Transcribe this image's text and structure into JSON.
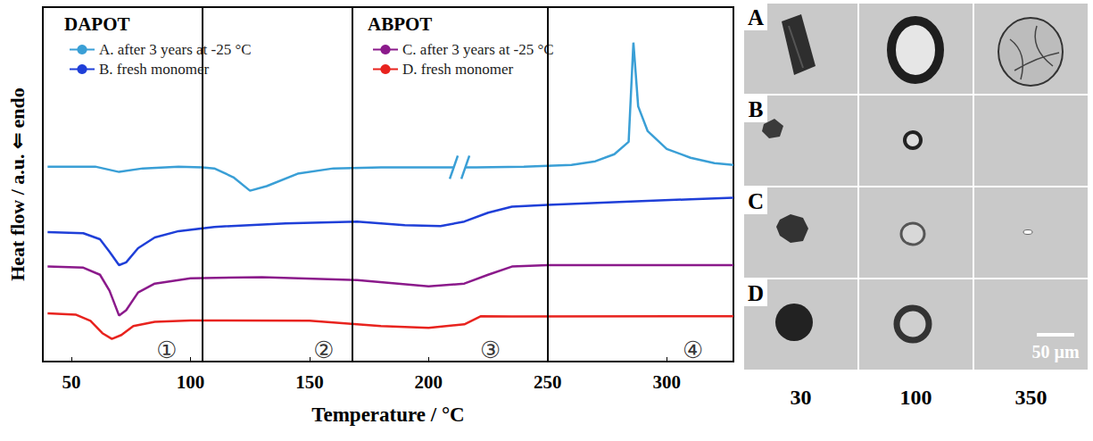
{
  "chart_data": {
    "type": "line",
    "x_label": "Temperature / °C",
    "y_label": "Heat flow / a.u. ⇐ endo",
    "xlim": [
      38,
      328
    ],
    "xticks": [
      50,
      100,
      150,
      200,
      250,
      300
    ],
    "ylim": [
      0,
      10
    ],
    "tick_labels": "x",
    "grid": false,
    "legend": "top",
    "series": [
      {
        "name": "A. after 3 years at -25 °C",
        "group": "DAPOT",
        "color": "#3a9fd6",
        "x": [
          40,
          60,
          70,
          80,
          95,
          105,
          110,
          118,
          125,
          132,
          145,
          160,
          180,
          200,
          220,
          240,
          260,
          270,
          278,
          284,
          286,
          288,
          292,
          300,
          310,
          320,
          328
        ],
        "values": [
          5.5,
          5.5,
          5.35,
          5.45,
          5.5,
          5.48,
          5.45,
          5.2,
          4.82,
          4.95,
          5.3,
          5.45,
          5.48,
          5.48,
          5.48,
          5.5,
          5.55,
          5.65,
          5.85,
          6.2,
          9.0,
          7.2,
          6.5,
          6.0,
          5.75,
          5.6,
          5.55
        ]
      },
      {
        "name": "B. fresh monomer",
        "group": "DAPOT",
        "color": "#1f3fd8",
        "x": [
          40,
          55,
          62,
          66,
          70,
          73,
          78,
          85,
          95,
          110,
          140,
          170,
          190,
          205,
          215,
          225,
          235,
          250,
          280,
          310,
          328
        ],
        "values": [
          3.65,
          3.62,
          3.45,
          3.1,
          2.72,
          2.8,
          3.2,
          3.5,
          3.68,
          3.8,
          3.9,
          3.95,
          3.85,
          3.82,
          3.95,
          4.2,
          4.37,
          4.42,
          4.5,
          4.58,
          4.62
        ]
      },
      {
        "name": "C. after 3 years at -25 °C",
        "group": "ABPOT",
        "color": "#8b1a8b",
        "x": [
          40,
          55,
          62,
          66,
          70,
          73,
          78,
          85,
          100,
          130,
          170,
          200,
          215,
          225,
          235,
          250,
          290,
          328
        ],
        "values": [
          2.68,
          2.65,
          2.45,
          2.0,
          1.3,
          1.45,
          1.95,
          2.2,
          2.35,
          2.38,
          2.3,
          2.12,
          2.2,
          2.45,
          2.68,
          2.72,
          2.72,
          2.72
        ]
      },
      {
        "name": "D. fresh monomer",
        "group": "ABPOT",
        "color": "#e8231e",
        "x": [
          40,
          52,
          58,
          63,
          67,
          71,
          76,
          85,
          100,
          150,
          180,
          200,
          215,
          222,
          235,
          328
        ],
        "values": [
          1.36,
          1.32,
          1.15,
          0.8,
          0.64,
          0.75,
          1.0,
          1.12,
          1.16,
          1.15,
          1.0,
          0.95,
          1.05,
          1.28,
          1.27,
          1.28
        ]
      }
    ],
    "region_lines": [
      105,
      168,
      250
    ],
    "regions": [
      {
        "label": "①",
        "x": 90,
        "y": 0.32
      },
      {
        "label": "②",
        "x": 156,
        "y": 0.32
      },
      {
        "label": "③",
        "x": 226,
        "y": 0.32
      },
      {
        "label": "④",
        "x": 311,
        "y": 0.32
      }
    ],
    "axis_break": [
      213,
      5.48
    ]
  },
  "micrographs": {
    "rows": [
      "A",
      "B",
      "C",
      "D"
    ],
    "columns": [
      30,
      100,
      350
    ],
    "scale_bar": "50 µm"
  }
}
